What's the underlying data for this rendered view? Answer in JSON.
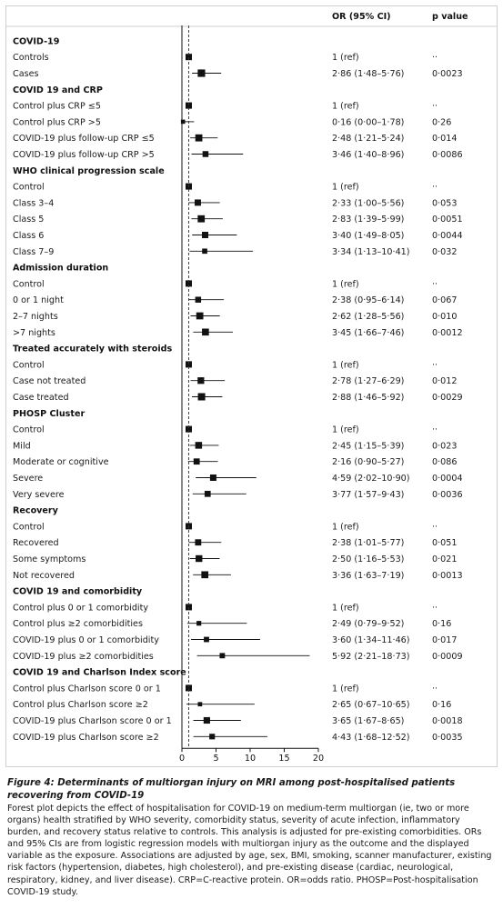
{
  "headers": {
    "or_ci": "OR (95% CI)",
    "p_value": "p value"
  },
  "chart_data": {
    "type": "forest",
    "x_ticks": [
      0,
      5,
      10,
      15,
      20
    ],
    "xlim": [
      0,
      20
    ],
    "reference_line": 1,
    "rows": [
      {
        "kind": "group",
        "label": "COVID-19"
      },
      {
        "kind": "item",
        "label": "Controls",
        "or": 1,
        "lo": null,
        "hi": null,
        "text": "1 (ref)",
        "p": "··"
      },
      {
        "kind": "item",
        "label": "Cases",
        "or": 2.86,
        "lo": 1.48,
        "hi": 5.76,
        "text": "2·86 (1·48–5·76)",
        "p": "0·0023"
      },
      {
        "kind": "group",
        "label": "COVID 19 and CRP"
      },
      {
        "kind": "item",
        "label": "Control plus CRP ≤5",
        "or": 1,
        "lo": null,
        "hi": null,
        "text": "1 (ref)",
        "p": "··"
      },
      {
        "kind": "item",
        "label": "Control plus CRP >5",
        "or": 0.16,
        "lo": 0.0,
        "hi": 1.78,
        "text": "0·16 (0·00–1·78)",
        "p": "0·26"
      },
      {
        "kind": "item",
        "label": "COVID-19 plus follow-up CRP ≤5",
        "or": 2.48,
        "lo": 1.21,
        "hi": 5.24,
        "text": "2·48 (1·21–5·24)",
        "p": "0·014"
      },
      {
        "kind": "item",
        "label": "COVID-19 plus follow-up CRP >5",
        "or": 3.46,
        "lo": 1.4,
        "hi": 8.96,
        "text": "3·46 (1·40–8·96)",
        "p": "0·0086"
      },
      {
        "kind": "group",
        "label": "WHO clinical progression scale"
      },
      {
        "kind": "item",
        "label": "Control",
        "or": 1,
        "lo": null,
        "hi": null,
        "text": "1 (ref)",
        "p": "··"
      },
      {
        "kind": "item",
        "label": "Class 3–4",
        "or": 2.33,
        "lo": 1.0,
        "hi": 5.56,
        "text": "2·33 (1·00–5·56)",
        "p": "0·053"
      },
      {
        "kind": "item",
        "label": "Class 5",
        "or": 2.83,
        "lo": 1.39,
        "hi": 5.99,
        "text": "2·83 (1·39–5·99)",
        "p": "0·0051"
      },
      {
        "kind": "item",
        "label": "Class 6",
        "or": 3.4,
        "lo": 1.49,
        "hi": 8.05,
        "text": "3·40 (1·49–8·05)",
        "p": "0·0044"
      },
      {
        "kind": "item",
        "label": "Class 7–9",
        "or": 3.34,
        "lo": 1.13,
        "hi": 10.41,
        "text": "3·34 (1·13–10·41)",
        "p": "0·032"
      },
      {
        "kind": "group",
        "label": "Admission duration"
      },
      {
        "kind": "item",
        "label": "Control",
        "or": 1,
        "lo": null,
        "hi": null,
        "text": "1 (ref)",
        "p": "··"
      },
      {
        "kind": "item",
        "label": "0 or 1 night",
        "or": 2.38,
        "lo": 0.95,
        "hi": 6.14,
        "text": "2·38 (0·95–6·14)",
        "p": "0·067"
      },
      {
        "kind": "item",
        "label": "2–7 nights",
        "or": 2.62,
        "lo": 1.28,
        "hi": 5.56,
        "text": "2·62 (1·28–5·56)",
        "p": "0·010"
      },
      {
        "kind": "item",
        "label": ">7 nights",
        "or": 3.45,
        "lo": 1.66,
        "hi": 7.46,
        "text": "3·45 (1·66–7·46)",
        "p": "0·0012"
      },
      {
        "kind": "group",
        "label": "Treated accurately with steroids"
      },
      {
        "kind": "item",
        "label": "Control",
        "or": 1,
        "lo": null,
        "hi": null,
        "text": "1 (ref)",
        "p": "··"
      },
      {
        "kind": "item",
        "label": "Case not treated",
        "or": 2.78,
        "lo": 1.27,
        "hi": 6.29,
        "text": "2·78 (1·27–6·29)",
        "p": "0·012"
      },
      {
        "kind": "item",
        "label": "Case treated",
        "or": 2.88,
        "lo": 1.46,
        "hi": 5.92,
        "text": "2·88 (1·46–5·92)",
        "p": "0·0029"
      },
      {
        "kind": "group",
        "label": "PHOSP Cluster"
      },
      {
        "kind": "item",
        "label": "Control",
        "or": 1,
        "lo": null,
        "hi": null,
        "text": "1 (ref)",
        "p": "··"
      },
      {
        "kind": "item",
        "label": "Mild",
        "or": 2.45,
        "lo": 1.15,
        "hi": 5.39,
        "text": "2·45 (1·15–5·39)",
        "p": "0·023"
      },
      {
        "kind": "item",
        "label": "Moderate or cognitive",
        "or": 2.16,
        "lo": 0.9,
        "hi": 5.27,
        "text": "2·16 (0·90–5·27)",
        "p": "0·086"
      },
      {
        "kind": "item",
        "label": "Severe",
        "or": 4.59,
        "lo": 2.02,
        "hi": 10.9,
        "text": "4·59 (2·02–10·90)",
        "p": "0·0004"
      },
      {
        "kind": "item",
        "label": "Very severe",
        "or": 3.77,
        "lo": 1.57,
        "hi": 9.43,
        "text": "3·77 (1·57–9·43)",
        "p": "0·0036"
      },
      {
        "kind": "group",
        "label": "Recovery"
      },
      {
        "kind": "item",
        "label": "Control",
        "or": 1,
        "lo": null,
        "hi": null,
        "text": "1 (ref)",
        "p": "··"
      },
      {
        "kind": "item",
        "label": "Recovered",
        "or": 2.38,
        "lo": 1.01,
        "hi": 5.77,
        "text": "2·38 (1·01–5·77)",
        "p": "0·051"
      },
      {
        "kind": "item",
        "label": "Some symptoms",
        "or": 2.5,
        "lo": 1.16,
        "hi": 5.53,
        "text": "2·50 (1·16–5·53)",
        "p": "0·021"
      },
      {
        "kind": "item",
        "label": "Not recovered",
        "or": 3.36,
        "lo": 1.63,
        "hi": 7.19,
        "text": "3·36 (1·63–7·19)",
        "p": "0·0013"
      },
      {
        "kind": "group",
        "label": "COVID 19 and comorbidity"
      },
      {
        "kind": "item",
        "label": "Control plus 0 or 1 comorbidity",
        "or": 1,
        "lo": null,
        "hi": null,
        "text": "1 (ref)",
        "p": "··"
      },
      {
        "kind": "item",
        "label": "Control plus ≥2 comorbidities",
        "or": 2.49,
        "lo": 0.79,
        "hi": 9.52,
        "text": "2·49 (0·79–9·52)",
        "p": "0·16"
      },
      {
        "kind": "item",
        "label": "COVID-19 plus 0 or 1 comorbidity",
        "or": 3.6,
        "lo": 1.34,
        "hi": 11.46,
        "text": "3·60 (1·34–11·46)",
        "p": "0·017"
      },
      {
        "kind": "item",
        "label": "COVID-19 plus ≥2 comorbidities",
        "or": 5.92,
        "lo": 2.21,
        "hi": 18.73,
        "text": "5·92 (2·21–18·73)",
        "p": "0·0009"
      },
      {
        "kind": "group",
        "label": "COVID 19 and Charlson Index score"
      },
      {
        "kind": "item",
        "label": "Control plus Charlson score 0 or 1",
        "or": 1,
        "lo": null,
        "hi": null,
        "text": "1 (ref)",
        "p": "··"
      },
      {
        "kind": "item",
        "label": "Control plus Charlson score ≥2",
        "or": 2.65,
        "lo": 0.67,
        "hi": 10.65,
        "text": "2·65 (0·67–10·65)",
        "p": "0·16"
      },
      {
        "kind": "item",
        "label": "COVID-19 plus Charlson score 0 or 1",
        "or": 3.65,
        "lo": 1.67,
        "hi": 8.65,
        "text": "3·65 (1·67–8·65)",
        "p": "0·0018"
      },
      {
        "kind": "item",
        "label": "COVID-19 plus Charlson score ≥2",
        "or": 4.43,
        "lo": 1.68,
        "hi": 12.52,
        "text": "4·43 (1·68–12·52)",
        "p": "0·0035"
      }
    ]
  },
  "caption": {
    "fig_label": "Figure 4:",
    "title": "Determinants of multiorgan injury on MRI among post-hospitalised patients recovering from COVID-19",
    "body": "Forest plot depicts the effect of hospitalisation for COVID-19 on medium-term multiorgan (ie, two or more organs) health stratified by WHO severity, comorbidity status, severity of acute infection, inflammatory burden, and recovery status relative to controls. This analysis is adjusted for pre-existing comorbidities. ORs and 95% CIs are from logistic regression models with multiorgan injury as the outcome and the displayed variable as the exposure. Associations are adjusted by age, sex, BMI, smoking, scanner manufacturer, existing risk factors (hypertension, diabetes, high cholesterol), and pre-existing disease (cardiac, neurological, respiratory, kidney, and liver disease). CRP=C-reactive protein. OR=odds ratio. PHOSP=Post-hospitalisation COVID-19 study."
  }
}
